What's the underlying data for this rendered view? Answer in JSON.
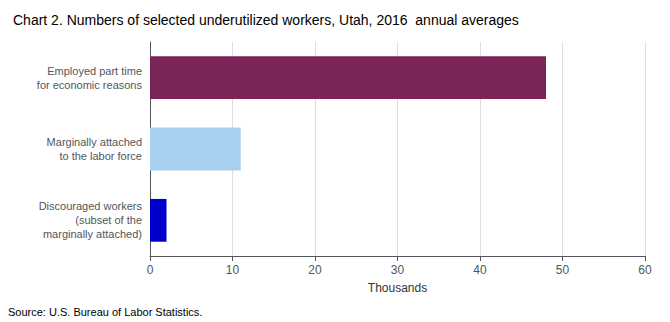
{
  "chart_data": {
    "type": "bar",
    "orientation": "horizontal",
    "title": "Chart 2. Numbers of selected underutilized workers, Utah, 2016  annual averages",
    "xlabel": "Thousands",
    "categories": [
      "Discouraged workers\n(subset of the\nmarginally attached)",
      "Marginally attached\nto the labor force",
      "Employed part time\nfor economic reasons"
    ],
    "values": [
      2,
      11,
      48
    ],
    "colors": [
      "#0000cc",
      "#a8d0f0",
      "#7b2457"
    ],
    "xlim": [
      0,
      60
    ],
    "xticks": [
      0,
      10,
      20,
      30,
      40,
      50,
      60
    ],
    "grid": true,
    "annotations": [
      "Source: U.S. Bureau of Labor Statistics."
    ]
  }
}
